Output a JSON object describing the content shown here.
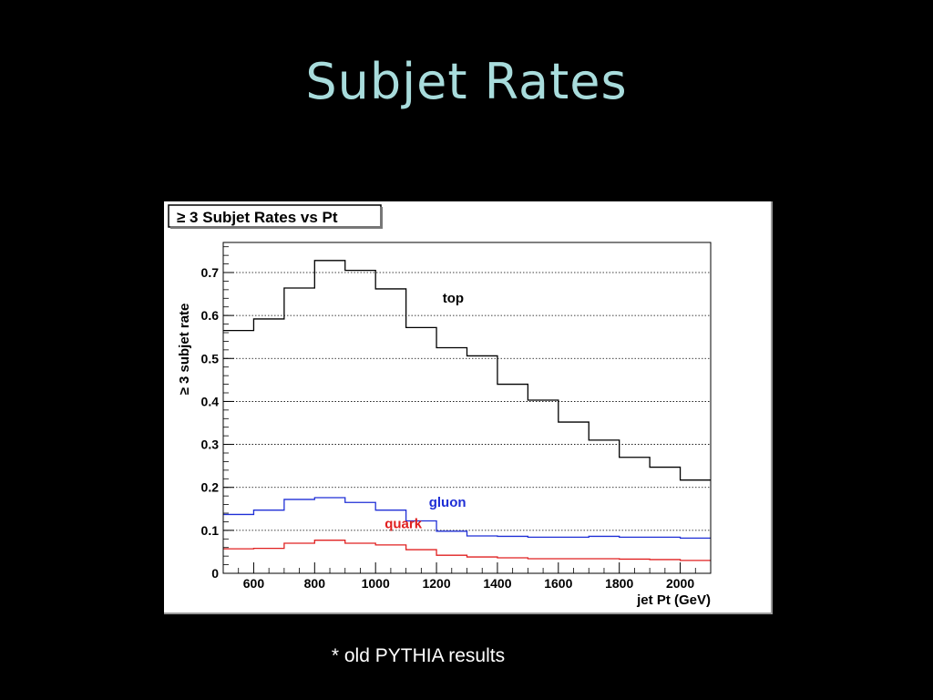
{
  "slide": {
    "title": "Subjet Rates",
    "footnote": "* old PYTHIA results"
  },
  "chart_data": {
    "type": "line",
    "title": "≥ 3 Subjet Rates vs Pt",
    "xlabel": "jet Pt (GeV)",
    "ylabel": "≥ 3 subjet rate",
    "xlim": [
      500,
      2100
    ],
    "ylim": [
      0,
      0.77
    ],
    "x_ticks": [
      600,
      800,
      1000,
      1200,
      1400,
      1600,
      1800,
      2000
    ],
    "y_ticks": [
      0,
      0.1,
      0.2,
      0.3,
      0.4,
      0.5,
      0.6,
      0.7
    ],
    "y_tick_labels": [
      "0",
      "0.1",
      "0.2",
      "0.3",
      "0.4",
      "0.5",
      "0.6",
      "0.7"
    ],
    "grid": "horizontal dotted",
    "bin_edges": [
      500,
      600,
      700,
      800,
      900,
      1000,
      1100,
      1200,
      1300,
      1400,
      1500,
      1600,
      1700,
      1800,
      1900,
      2000,
      2100
    ],
    "series": [
      {
        "name": "top",
        "color": "#000000",
        "values": [
          0.565,
          0.592,
          0.664,
          0.728,
          0.705,
          0.662,
          0.572,
          0.525,
          0.506,
          0.44,
          0.403,
          0.352,
          0.31,
          0.27,
          0.247,
          0.217
        ]
      },
      {
        "name": "gluon",
        "color": "#1f2fd6",
        "values": [
          0.137,
          0.147,
          0.172,
          0.176,
          0.165,
          0.147,
          0.122,
          0.098,
          0.087,
          0.086,
          0.084,
          0.084,
          0.086,
          0.084,
          0.084,
          0.082
        ]
      },
      {
        "name": "quark",
        "color": "#e02020",
        "values": [
          0.057,
          0.058,
          0.07,
          0.077,
          0.07,
          0.066,
          0.055,
          0.042,
          0.038,
          0.036,
          0.034,
          0.034,
          0.034,
          0.033,
          0.032,
          0.03
        ]
      }
    ]
  }
}
